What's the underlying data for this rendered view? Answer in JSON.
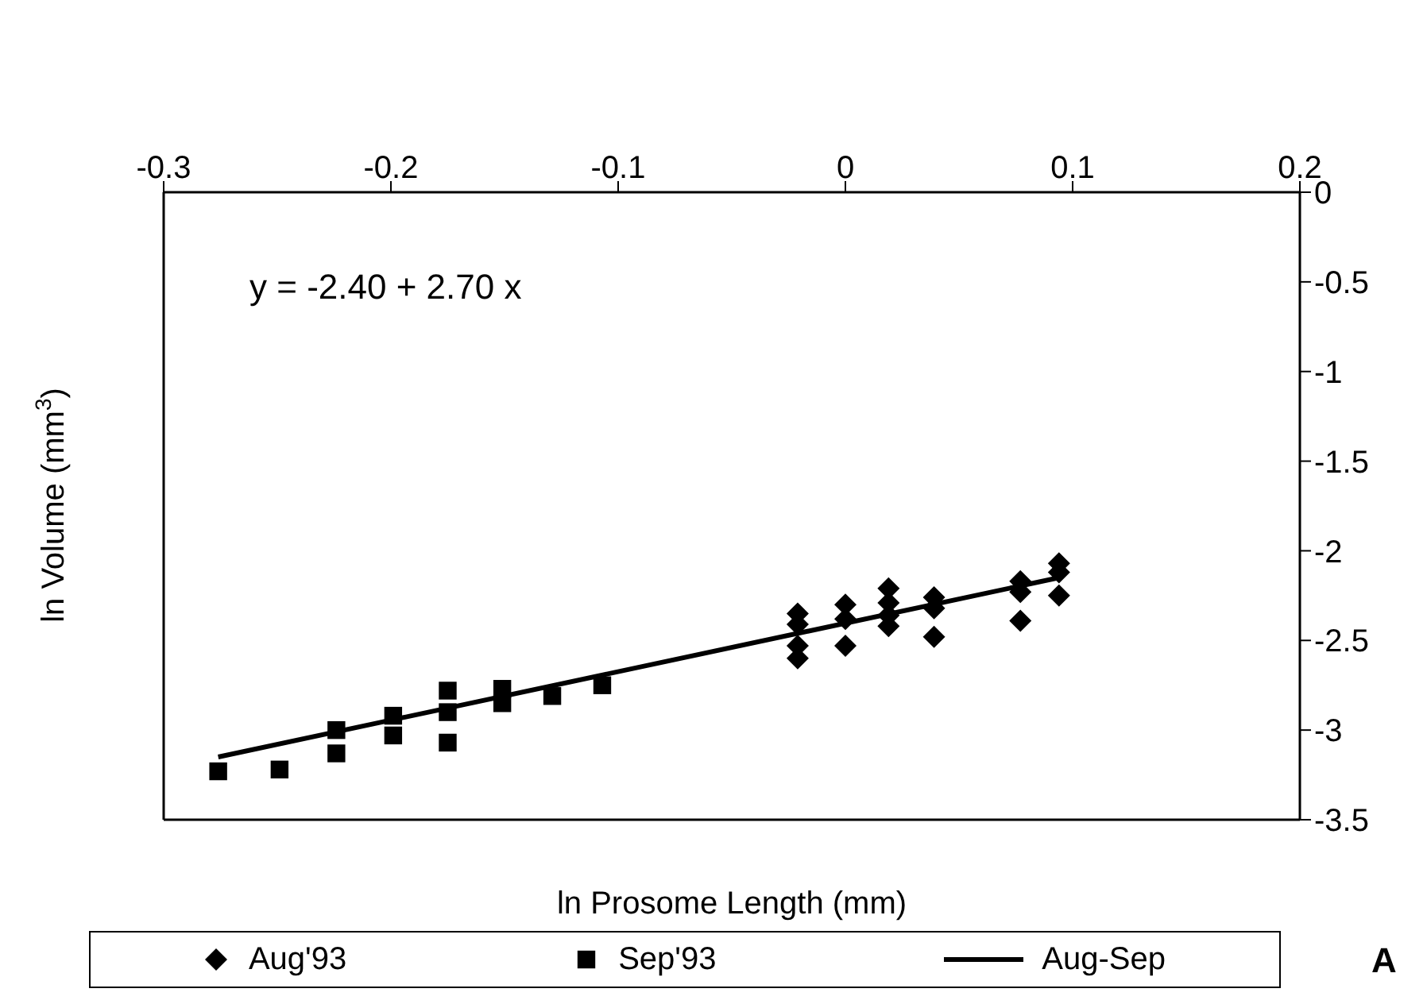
{
  "chart_data": {
    "type": "scatter",
    "xlabel": "ln Prosome Length (mm)",
    "ylabel": "ln Volume (mm$^{3}$)",
    "annotations": [
      "y = -2.40 + 2.70 x",
      "A"
    ],
    "xlim": [
      -0.3,
      0.2
    ],
    "xticks": [
      -0.3,
      -0.2,
      -0.1,
      0,
      0.1,
      0.2
    ],
    "ylim": [
      -3.5,
      0
    ],
    "yticks": [
      0,
      -0.5,
      -1,
      -1.5,
      -2,
      -2.5,
      -3,
      -3.5
    ],
    "legend": "bottom",
    "series": [
      {
        "name": "Aug'93",
        "marker": "diamond",
        "color": "#000000",
        "x": [
          -0.021,
          -0.021,
          -0.021,
          -0.021,
          0,
          0,
          0,
          0.019,
          0.019,
          0.019,
          0.019,
          0.039,
          0.039,
          0.039,
          0.077,
          0.077,
          0.077,
          0.094,
          0.094,
          0.094
        ],
        "values": [
          -2.35,
          -2.41,
          -2.53,
          -2.6,
          -2.3,
          -2.38,
          -2.53,
          -2.21,
          -2.29,
          -2.36,
          -2.42,
          -2.26,
          -2.32,
          -2.48,
          -2.17,
          -2.23,
          -2.39,
          -2.07,
          -2.12,
          -2.25
        ]
      },
      {
        "name": "Sep'93",
        "marker": "square",
        "color": "#000000",
        "x": [
          -0.276,
          -0.249,
          -0.224,
          -0.224,
          -0.199,
          -0.199,
          -0.175,
          -0.175,
          -0.175,
          -0.151,
          -0.151,
          -0.129,
          -0.107
        ],
        "values": [
          -3.23,
          -3.22,
          -3.0,
          -3.13,
          -2.92,
          -3.03,
          -2.78,
          -2.9,
          -3.07,
          -2.77,
          -2.85,
          -2.81,
          -2.75
        ]
      },
      {
        "name": "Aug-Sep",
        "type": "line",
        "marker": "none",
        "line_style": "solid",
        "color": "#000000",
        "x": [
          -0.276,
          0.094
        ],
        "values": [
          -3.15,
          -2.15
        ]
      }
    ]
  }
}
